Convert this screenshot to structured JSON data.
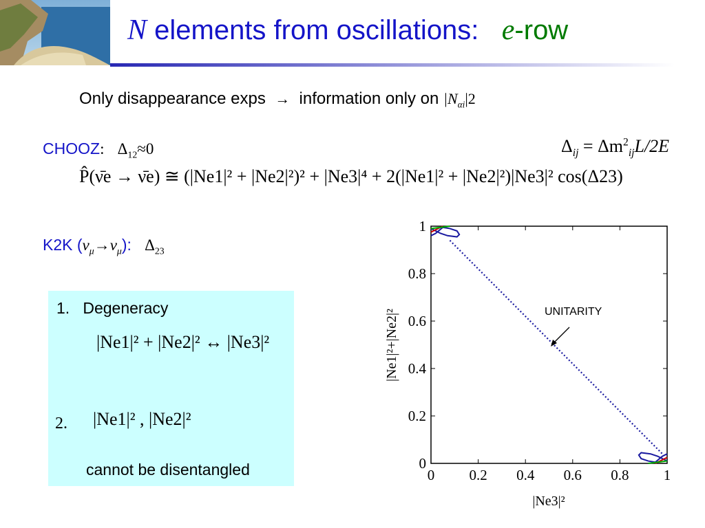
{
  "title": {
    "sym": "N",
    "text": " elements from oscillations:",
    "sym2": "e",
    "suffix": "-row"
  },
  "intro": {
    "text": "Only disappearance exps",
    "arrow": "→",
    "info": "information only on",
    "math": "|N",
    "math_sub": "αi",
    "math_sup": "|2"
  },
  "chooz": {
    "label": "CHOOZ",
    "colon": ":",
    "delta": "Δ",
    "delta_sub": "12",
    "approx": "≈0"
  },
  "delta_def": {
    "lhs": "Δ",
    "lhs_sub": "ij",
    "eq": " = Δm",
    "m_sup": "2",
    "m_sub": "ij",
    "rest": "L/2E"
  },
  "k2k": {
    "label": "K2K",
    "paren_open": " (",
    "nu": "ν",
    "mu": "μ",
    "arrow": "→",
    "paren_close": "):",
    "delta": "Δ",
    "delta_sub": "23"
  },
  "main_eq": {
    "text": "P̂(ν̄e → ν̄e) ≅ (|Ne1|² + |Ne2|²)² + |Ne3|⁴ + 2(|Ne1|² + |Ne2|²)|Ne3|² cos(Δ23)"
  },
  "box": {
    "item1_num": "1.",
    "item1_text": "Degeneracy",
    "eq1": "|Ne1|² + |Ne2|² ↔ |Ne3|²",
    "item2_num": "2.",
    "eq2": "|Ne1|² , |Ne2|²",
    "note": "cannot be disentangled"
  },
  "chart_data": {
    "type": "line",
    "title": "",
    "xlabel": "|Ne3|²",
    "ylabel": "|Ne1|²+|Ne2|²",
    "xlim": [
      0,
      1
    ],
    "ylim": [
      0,
      1
    ],
    "xticks": [
      "0",
      "0.2",
      "0.4",
      "0.6",
      "0.8",
      "1"
    ],
    "yticks": [
      "0",
      "0.2",
      "0.4",
      "0.6",
      "0.8",
      "1"
    ],
    "annotation": "UNITARITY",
    "series": [
      {
        "color": "#1a1aa0",
        "style": "dotted",
        "points": [
          [
            0.08,
            0.94
          ],
          [
            0.98,
            0.04
          ]
        ]
      },
      {
        "color": "#1a1aa0",
        "style": "solid",
        "points": [
          [
            0,
            0.96
          ],
          [
            0.02,
            0.97
          ],
          [
            0.05,
            0.995
          ],
          [
            0.08,
            0.99
          ],
          [
            0.11,
            0.98
          ],
          [
            0.12,
            0.965
          ],
          [
            0.11,
            0.955
          ],
          [
            0.07,
            0.96
          ],
          [
            0.04,
            0.97
          ],
          [
            0,
            0.99
          ]
        ]
      },
      {
        "color": "#1a1aa0",
        "style": "solid",
        "points": [
          [
            1,
            0.04
          ],
          [
            0.98,
            0.03
          ],
          [
            0.95,
            0.005
          ],
          [
            0.92,
            0.01
          ],
          [
            0.89,
            0.02
          ],
          [
            0.88,
            0.035
          ],
          [
            0.89,
            0.045
          ],
          [
            0.93,
            0.04
          ],
          [
            0.96,
            0.03
          ],
          [
            1,
            0.01
          ]
        ]
      },
      {
        "color": "#cc0000",
        "style": "solid",
        "points": [
          [
            0,
            0.975
          ],
          [
            0.03,
            0.99
          ],
          [
            0.05,
            1.0
          ]
        ]
      },
      {
        "color": "#00aa00",
        "style": "solid",
        "points": [
          [
            0,
            0.99
          ],
          [
            0.04,
            0.995
          ],
          [
            0.08,
            1.0
          ]
        ]
      },
      {
        "color": "#cc0000",
        "style": "solid",
        "points": [
          [
            1,
            0.025
          ],
          [
            0.97,
            0.01
          ],
          [
            0.95,
            0.0
          ]
        ]
      },
      {
        "color": "#00aa00",
        "style": "solid",
        "points": [
          [
            1,
            0.01
          ],
          [
            0.96,
            0.005
          ],
          [
            0.92,
            0.0
          ]
        ]
      }
    ]
  }
}
